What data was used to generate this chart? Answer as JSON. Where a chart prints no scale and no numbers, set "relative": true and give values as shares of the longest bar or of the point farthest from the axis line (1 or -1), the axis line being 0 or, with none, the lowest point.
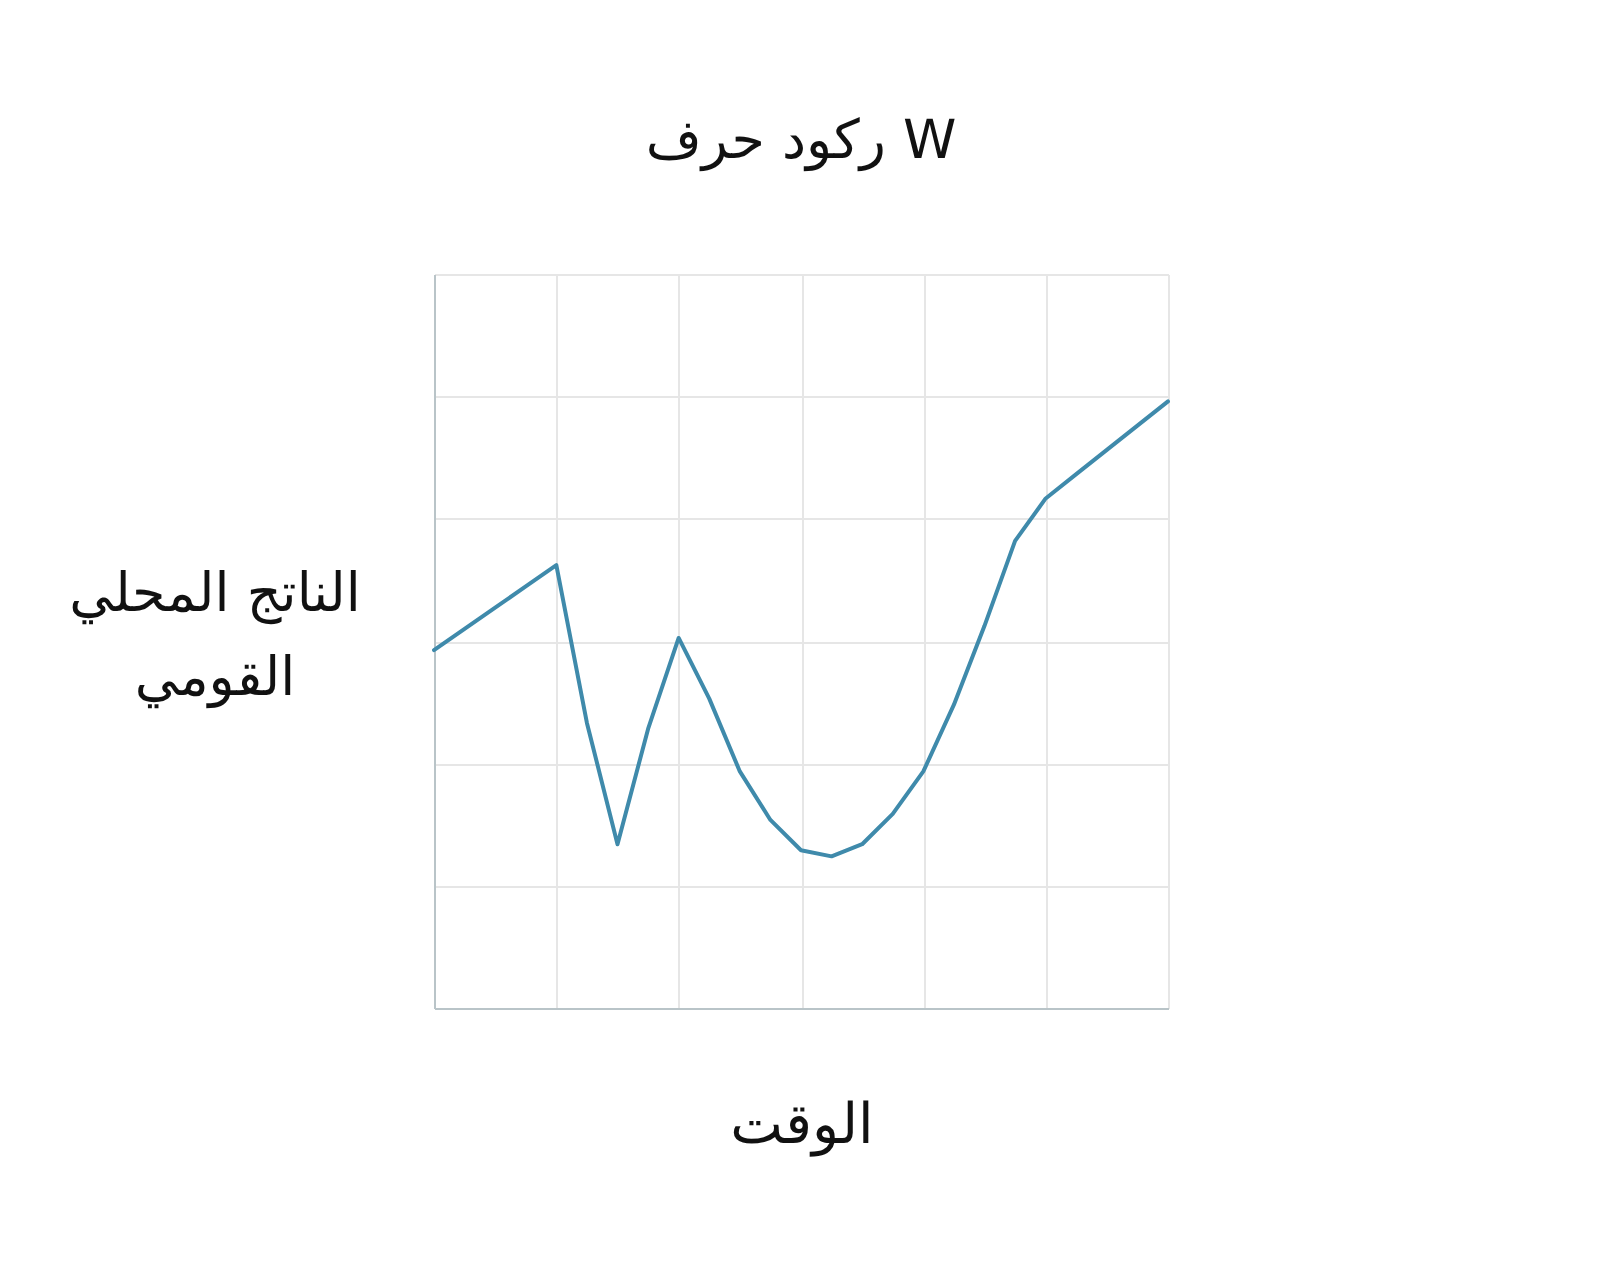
{
  "chart_data": {
    "type": "line",
    "title": "ركود حرف W",
    "xlabel": "الوقت",
    "ylabel": "الناتج المحلي القومي",
    "relative": true,
    "grid": true,
    "marker": "none",
    "line_style": "solid",
    "categories": [
      null,
      null,
      null,
      null,
      null,
      null,
      null,
      null,
      null,
      null,
      null,
      null,
      null,
      null,
      null,
      null,
      null,
      null,
      null,
      null,
      null,
      null,
      null,
      null,
      null
    ],
    "series": [
      {
        "color": "#3f8aab",
        "values": [
          0.59,
          0.625,
          0.66,
          0.695,
          0.73,
          0.47,
          0.27,
          0.46,
          0.61,
          0.51,
          0.39,
          0.31,
          0.26,
          0.25,
          0.27,
          0.32,
          0.39,
          0.5,
          0.63,
          0.77,
          0.84,
          0.88,
          0.92,
          0.96,
          1
        ]
      }
    ]
  }
}
